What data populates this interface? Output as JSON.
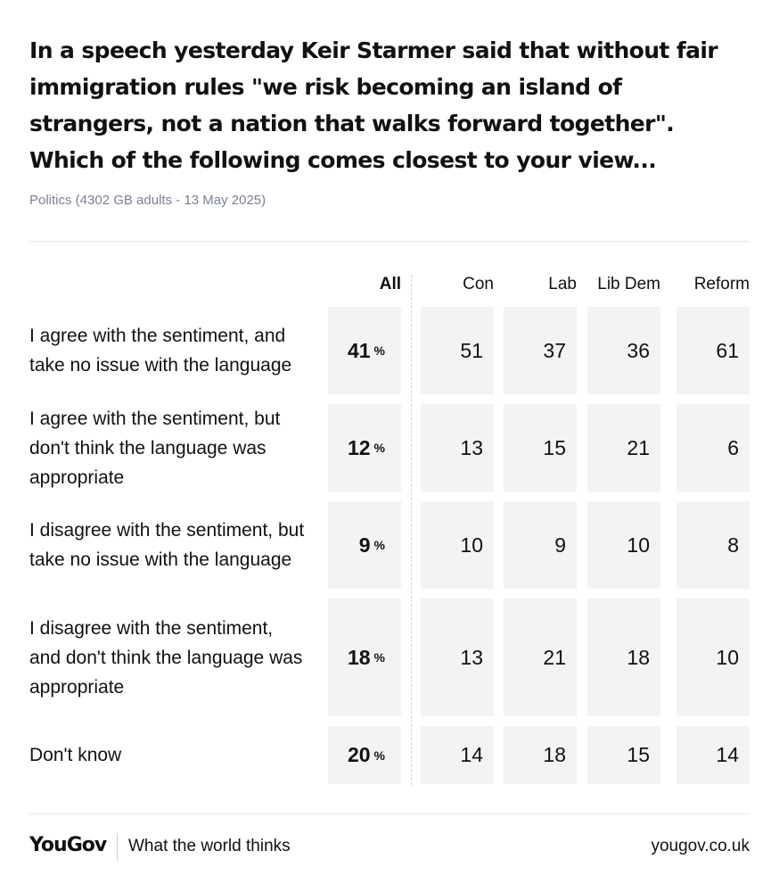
{
  "title": "In a speech yesterday Keir Starmer said that without fair immigration rules \"we risk becoming an island of strangers, not a nation that walks forward together\". Which of the following comes closest to your view...",
  "subtitle": "Politics (4302 GB adults - 13 May 2025)",
  "footer": {
    "logo": "YouGov",
    "tagline": "What the world thinks",
    "site": "yougov.co.uk"
  },
  "chart_data": {
    "type": "table",
    "columns": [
      "All",
      "Con",
      "Lab",
      "Lib Dem",
      "Reform"
    ],
    "unit": "%",
    "rows": [
      {
        "label": "I agree with the sentiment, and take no issue with the language",
        "values": [
          41,
          51,
          37,
          36,
          61
        ]
      },
      {
        "label": "I agree with the sentiment, but don't think the language was appropriate",
        "values": [
          12,
          13,
          15,
          21,
          6
        ]
      },
      {
        "label": "I disagree with the sentiment, but take no issue with the language",
        "values": [
          9,
          10,
          9,
          10,
          8
        ]
      },
      {
        "label": "I disagree with the sentiment, and don't think the language was appropriate",
        "values": [
          18,
          13,
          21,
          18,
          10
        ]
      },
      {
        "label": "Don't know",
        "values": [
          20,
          14,
          18,
          15,
          14
        ]
      }
    ]
  }
}
